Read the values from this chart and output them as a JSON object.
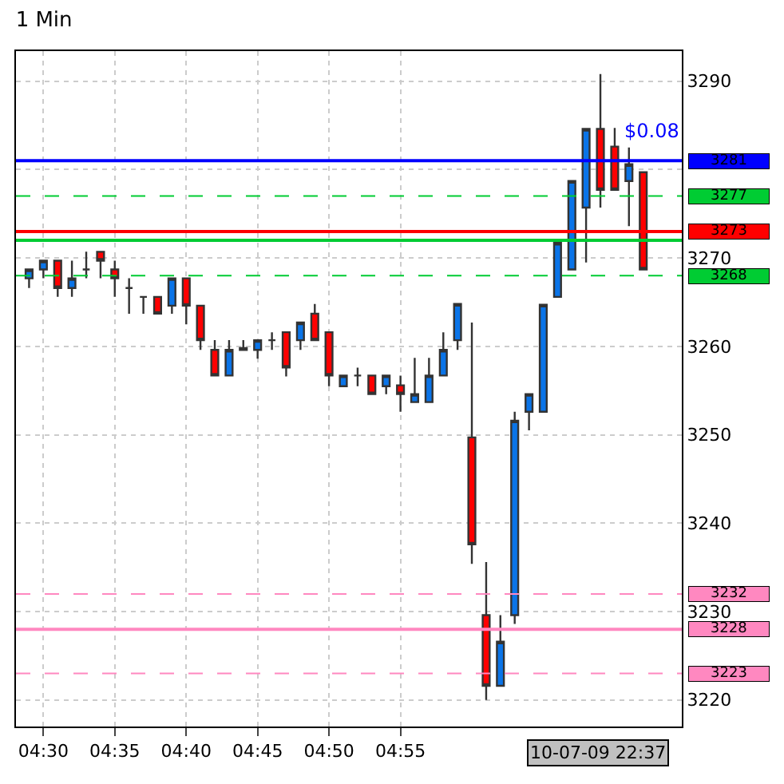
{
  "chart_data": {
    "type": "candlestick",
    "title": "1 Min",
    "x": [
      4.4833,
      4.5,
      4.5167,
      4.5333,
      4.55,
      4.5667,
      4.5833,
      4.6,
      4.6167,
      4.6333,
      4.65,
      4.6667,
      4.6833,
      4.7,
      4.7167,
      4.7333,
      4.75,
      4.7667,
      4.7833,
      4.8,
      4.8167,
      4.8333,
      4.85,
      4.8667,
      4.8833,
      4.9,
      4.9167,
      4.9333,
      4.95,
      4.9667,
      4.9833,
      5.0,
      5.0167,
      5.0333,
      5.05,
      5.0667,
      5.0833,
      5.1,
      5.1167,
      5.1333,
      5.15,
      5.1667,
      5.1833,
      5.2
    ],
    "ohlc": [
      [
        3267.7,
        3268.7,
        3266.6,
        3268.7
      ],
      [
        3268.7,
        3269.7,
        3267.7,
        3269.7
      ],
      [
        3269.7,
        3269.7,
        3265.6,
        3266.6
      ],
      [
        3266.6,
        3269.7,
        3265.6,
        3267.7
      ],
      [
        3268.7,
        3270.7,
        3267.7,
        3268.7
      ],
      [
        3270.7,
        3270.7,
        3267.7,
        3269.7
      ],
      [
        3268.7,
        3269.7,
        3265.6,
        3267.7
      ],
      [
        3266.6,
        3267.7,
        3263.7,
        3266.6
      ],
      [
        3265.6,
        3265.6,
        3263.7,
        3265.6
      ],
      [
        3265.6,
        3265.6,
        3263.7,
        3263.7
      ],
      [
        3264.6,
        3267.7,
        3263.7,
        3267.7
      ],
      [
        3267.7,
        3267.7,
        3262.5,
        3264.6
      ],
      [
        3264.6,
        3264.6,
        3259.6,
        3260.7
      ],
      [
        3259.6,
        3260.7,
        3256.7,
        3256.7
      ],
      [
        3256.7,
        3260.7,
        3256.7,
        3259.6
      ],
      [
        3259.8,
        3260.7,
        3259.6,
        3259.6
      ],
      [
        3259.6,
        3260.7,
        3258.6,
        3260.7
      ],
      [
        3260.7,
        3261.6,
        3259.6,
        3260.7
      ],
      [
        3261.6,
        3261.6,
        3256.6,
        3257.6
      ],
      [
        3260.7,
        3262.7,
        3259.6,
        3262.7
      ],
      [
        3263.7,
        3264.8,
        3260.7,
        3260.7
      ],
      [
        3261.6,
        3261.6,
        3255.5,
        3256.7
      ],
      [
        3255.5,
        3256.7,
        3255.5,
        3256.7
      ],
      [
        3256.7,
        3257.6,
        3255.5,
        3256.7
      ],
      [
        3256.7,
        3256.7,
        3254.6,
        3254.6
      ],
      [
        3255.5,
        3256.7,
        3254.6,
        3256.7
      ],
      [
        3255.6,
        3256.7,
        3252.6,
        3254.6
      ],
      [
        3253.7,
        3258.7,
        3253.7,
        3254.6
      ],
      [
        3253.7,
        3258.7,
        3253.7,
        3256.7
      ],
      [
        3256.7,
        3261.6,
        3256.7,
        3259.6
      ],
      [
        3260.7,
        3264.8,
        3259.6,
        3264.8
      ],
      [
        3249.7,
        3262.7,
        3235.4,
        3237.6
      ],
      [
        3229.6,
        3235.6,
        3220.0,
        3221.6
      ],
      [
        3221.6,
        3229.6,
        3221.6,
        3226.6
      ],
      [
        3229.6,
        3252.6,
        3228.6,
        3251.6
      ],
      [
        3252.6,
        3254.6,
        3250.5,
        3254.6
      ],
      [
        3252.6,
        3264.7,
        3252.6,
        3264.7
      ],
      [
        3265.6,
        3271.7,
        3265.6,
        3271.7
      ],
      [
        3268.7,
        3278.7,
        3268.7,
        3278.7
      ],
      [
        3275.7,
        3284.6,
        3269.5,
        3284.6
      ],
      [
        3284.6,
        3290.8,
        3275.7,
        3277.7
      ],
      [
        3282.6,
        3284.7,
        3277.7,
        3277.7
      ],
      [
        3278.7,
        3282.5,
        3273.6,
        3280.6
      ],
      [
        3279.7,
        3279.7,
        3268.7,
        3268.7
      ]
    ],
    "xlim": [
      4.468,
      5.245
    ],
    "ylim": [
      3217,
      3293.4
    ],
    "xticks": [
      {
        "value": 4.5,
        "label": "04:30"
      },
      {
        "value": 4.5833,
        "label": "04:35"
      },
      {
        "value": 4.6667,
        "label": "04:40"
      },
      {
        "value": 4.75,
        "label": "04:45"
      },
      {
        "value": 4.8333,
        "label": "04:50"
      },
      {
        "value": 4.9167,
        "label": "04:55"
      }
    ],
    "yticks": [
      3220,
      3230,
      3240,
      3250,
      3260,
      3270,
      {
        "value": 3280,
        "label": null
      },
      3290
    ],
    "grid": true,
    "ref_lines": [
      {
        "axis": "y",
        "value": 3281,
        "label": "3281",
        "color": "#0000ff",
        "line_style": "solid"
      },
      {
        "axis": "y",
        "value": 3277,
        "label": "3277",
        "color": "#00cc33",
        "line_style": "dashed"
      },
      {
        "axis": "y",
        "value": 3273,
        "label": "3273",
        "color": "#ff0000",
        "line_style": "solid"
      },
      {
        "axis": "y",
        "value": 3272,
        "color": "#00cc33",
        "line_style": "solid"
      },
      {
        "axis": "y",
        "value": 3268,
        "label": "3268",
        "color": "#00cc33",
        "line_style": "dashed"
      },
      {
        "axis": "y",
        "value": 3232,
        "label": "3232",
        "color": "#ff88c0",
        "line_style": "dashed"
      },
      {
        "axis": "y",
        "value": 3228,
        "label": "3228",
        "color": "#ff88c0",
        "line_style": "solid"
      },
      {
        "axis": "y",
        "value": 3223,
        "label": "3223",
        "color": "#ff88c0",
        "line_style": "dashed"
      }
    ],
    "annotations": [
      "$0.08",
      "10-07-09 22:37"
    ]
  }
}
